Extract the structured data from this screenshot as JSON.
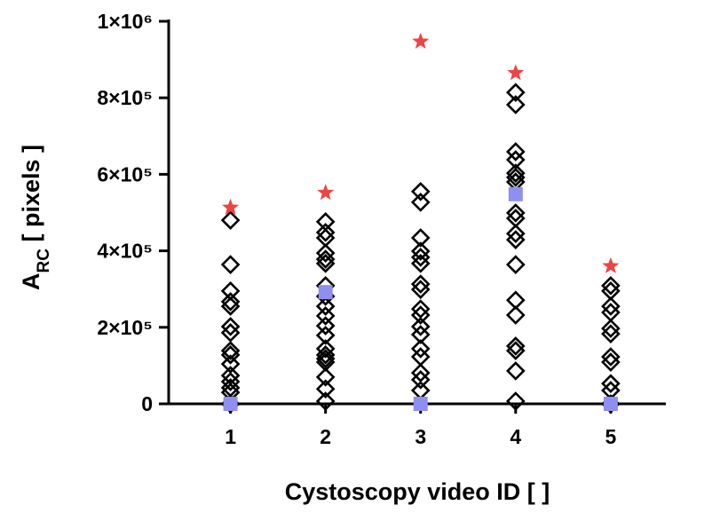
{
  "chart_data": {
    "type": "scatter",
    "xlabel": "Cystoscopy video ID [ ]",
    "ylabel": [
      "A",
      "RC",
      " [ pixels ]"
    ],
    "xlim": [
      0.35,
      5.58
    ],
    "xticks": [
      1,
      2,
      3,
      4,
      5
    ],
    "ylim": [
      0,
      1000000
    ],
    "yticks": [
      0,
      {
        "value": 200000,
        "label": "2×10⁵"
      },
      {
        "value": 400000,
        "label": "4×10⁵"
      },
      {
        "value": 600000,
        "label": "6×10⁵"
      },
      {
        "value": 800000,
        "label": "8×10⁵"
      },
      {
        "value": 1000000,
        "label": "1×10⁶"
      }
    ],
    "series": [
      {
        "marker": "diamond",
        "color": "#000000",
        "x": [
          1,
          1,
          1,
          1,
          1,
          1,
          1,
          1,
          1,
          1,
          1,
          1,
          1,
          1,
          1,
          2,
          2,
          2,
          2,
          2,
          2,
          2,
          2,
          2,
          2,
          2,
          2,
          2,
          2,
          2,
          2,
          2,
          2,
          2,
          3,
          3,
          3,
          3,
          3,
          3,
          3,
          3,
          3,
          3,
          3,
          3,
          3,
          3,
          3,
          3,
          3,
          4,
          4,
          4,
          4,
          4,
          4,
          4,
          4,
          4,
          4,
          4,
          4,
          4,
          4,
          4,
          4,
          4,
          4,
          5,
          5,
          5,
          5,
          5,
          5,
          5,
          5,
          5,
          5,
          5
        ],
        "values": [
          480000,
          364000,
          295000,
          267000,
          255000,
          202000,
          186000,
          139000,
          128000,
          104000,
          74000,
          58000,
          42000,
          30000,
          0,
          476000,
          448000,
          434000,
          394000,
          378000,
          367000,
          309000,
          281000,
          255000,
          230000,
          204000,
          179000,
          144000,
          128000,
          118000,
          109000,
          70000,
          39000,
          7000,
          555000,
          527000,
          434000,
          399000,
          383000,
          367000,
          313000,
          299000,
          248000,
          232000,
          202000,
          181000,
          144000,
          123000,
          81000,
          63000,
          35000,
          814000,
          782000,
          659000,
          638000,
          603000,
          592000,
          580000,
          499000,
          485000,
          445000,
          429000,
          364000,
          271000,
          232000,
          151000,
          139000,
          86000,
          7000,
          309000,
          295000,
          255000,
          239000,
          197000,
          183000,
          123000,
          109000,
          53000,
          35000,
          0
        ]
      },
      {
        "marker": "star",
        "color": "#ee4444",
        "x": [
          1,
          2,
          3,
          4,
          5
        ],
        "values": [
          513000,
          552000,
          947000,
          865000,
          360000
        ]
      },
      {
        "marker": "square",
        "color": "#8f8ff0",
        "x": [
          1,
          2,
          3,
          4,
          5
        ],
        "values": [
          0,
          292000,
          0,
          548000,
          0
        ]
      }
    ]
  }
}
